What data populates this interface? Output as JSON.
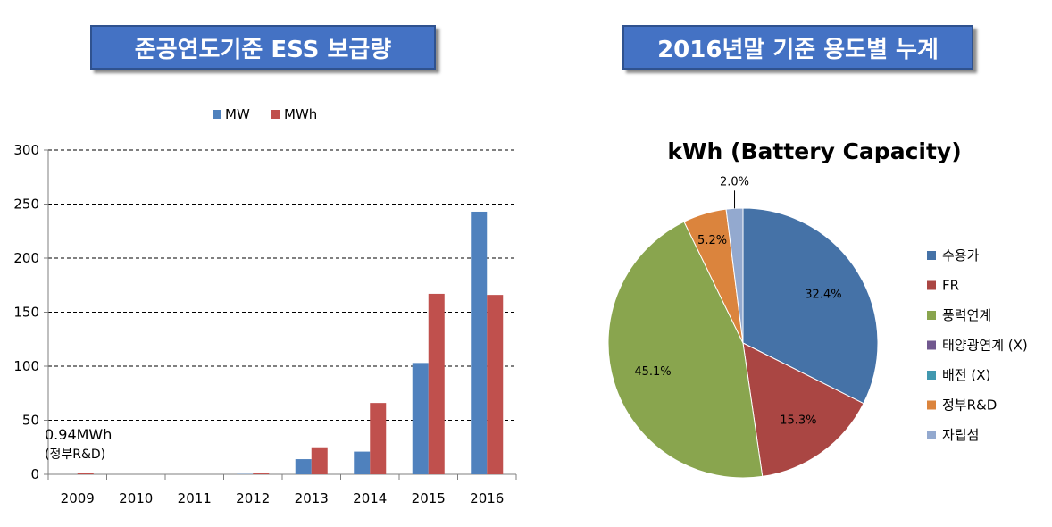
{
  "left_title": "준공연도기준 ESS 보급량",
  "right_title": "2016년말 기준 용도별 누계",
  "colors": {
    "banner": "#4472c4",
    "mw": "#4f81bd",
    "mwh": "#c0504d"
  },
  "chart_data": [
    {
      "type": "bar",
      "title": "",
      "categories": [
        "2009",
        "2010",
        "2011",
        "2012",
        "2013",
        "2014",
        "2015",
        "2016"
      ],
      "series": [
        {
          "name": "MW",
          "color": "#4f81bd",
          "values": [
            0,
            0,
            0,
            0.3,
            14,
            21,
            103,
            243
          ]
        },
        {
          "name": "MWh",
          "color": "#c0504d",
          "values": [
            0.94,
            0,
            0,
            0.8,
            25,
            66,
            167,
            166
          ]
        }
      ],
      "ylim": [
        0,
        300
      ],
      "yticks": [
        0,
        50,
        100,
        150,
        200,
        250,
        300
      ],
      "grid": true,
      "legend": "top",
      "annotation": {
        "line1": "0.94MWh",
        "line2": "(정부R&D)"
      }
    },
    {
      "type": "pie",
      "title": "kWh (Battery Capacity)",
      "legend": "right",
      "slices": [
        {
          "label": "수용가",
          "value": 32.4,
          "pct_label": "32.4%",
          "color": "#4572a7"
        },
        {
          "label": "FR",
          "value": 15.3,
          "pct_label": "15.3%",
          "color": "#aa4643"
        },
        {
          "label": "풍력연계",
          "value": 45.1,
          "pct_label": "45.1%",
          "color": "#89a54e"
        },
        {
          "label": "태양광연계 (X)",
          "value": 0,
          "pct_label": "",
          "color": "#71588f"
        },
        {
          "label": "배전 (X)",
          "value": 0,
          "pct_label": "",
          "color": "#4198af"
        },
        {
          "label": "정부R&D",
          "value": 5.2,
          "pct_label": "5.2%",
          "color": "#db843d"
        },
        {
          "label": "자립섬",
          "value": 2.0,
          "pct_label": "2.0%",
          "color": "#93a9cf"
        }
      ]
    }
  ]
}
